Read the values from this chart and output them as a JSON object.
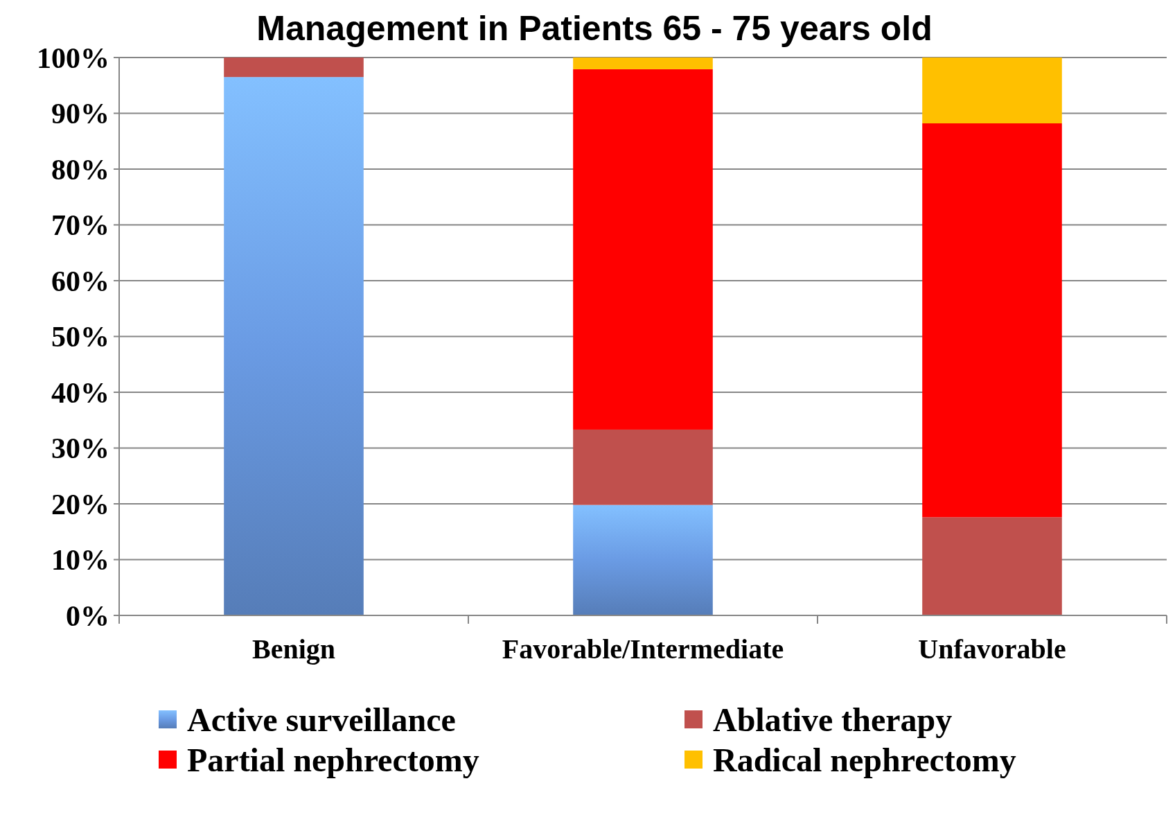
{
  "chart_data": {
    "type": "bar",
    "title": "Management in Patients 65 - 75 years old",
    "categories": [
      "Benign",
      "Favorable/Intermediate",
      "Unfavorable"
    ],
    "series": [
      {
        "name": "Active surveillance",
        "color": "#6a9be4",
        "values": [
          96.5,
          19.8,
          0
        ]
      },
      {
        "name": "Ablative therapy",
        "color": "#c0504d",
        "values": [
          3.5,
          13.5,
          17.6
        ]
      },
      {
        "name": "Partial nephrectomy",
        "color": "#ff0000",
        "values": [
          0,
          64.6,
          70.6
        ]
      },
      {
        "name": "Radical nephrectomy",
        "color": "#ffc000",
        "values": [
          0,
          2.1,
          11.8
        ]
      }
    ],
    "stacked": true,
    "ylim": [
      0,
      100
    ],
    "yticks": [
      {
        "value": 0,
        "label": "0%"
      },
      {
        "value": 10,
        "label": "10%"
      },
      {
        "value": 20,
        "label": "20%"
      },
      {
        "value": 30,
        "label": "30%"
      },
      {
        "value": 40,
        "label": "40%"
      },
      {
        "value": 50,
        "label": "50%"
      },
      {
        "value": 60,
        "label": "60%"
      },
      {
        "value": 70,
        "label": "70%"
      },
      {
        "value": 80,
        "label": "80%"
      },
      {
        "value": 90,
        "label": "90%"
      },
      {
        "value": 100,
        "label": "100%"
      }
    ],
    "grid": "y",
    "legend": "bottom"
  }
}
